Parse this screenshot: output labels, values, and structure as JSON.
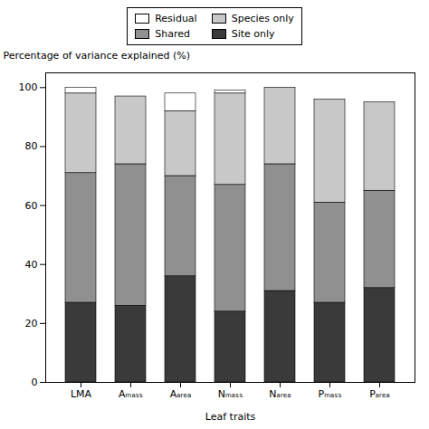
{
  "chart_data": {
    "type": "bar",
    "stacked": true,
    "categories": [
      "LMA",
      "Aₘₐₛₛ",
      "Aₐᵣₑₐ",
      "Nₘₐₛₛ",
      "Nₐᵣₑₐ",
      "Pₘₐₛₛ",
      "Pₐᵣₑₐ"
    ],
    "series": [
      {
        "name": "Site only",
        "color": "#3a3a3a",
        "values": [
          27,
          26,
          36,
          24,
          31,
          27,
          32
        ]
      },
      {
        "name": "Shared",
        "color": "#909090",
        "values": [
          44,
          48,
          34,
          43,
          43,
          34,
          33
        ]
      },
      {
        "name": "Species only",
        "color": "#c8c8c8",
        "values": [
          27,
          23,
          22,
          31,
          26,
          35,
          30
        ]
      },
      {
        "name": "Residual",
        "color": "#ffffff",
        "values": [
          2,
          0,
          6,
          1,
          0,
          0,
          0
        ]
      }
    ],
    "xlabel": "Leaf traits",
    "ylabel": "Percentage of variance explained (%)",
    "ylim": [
      0,
      105
    ],
    "yticks": [
      0,
      20,
      40,
      60,
      80,
      100
    ],
    "grid": false,
    "legend": "top"
  }
}
